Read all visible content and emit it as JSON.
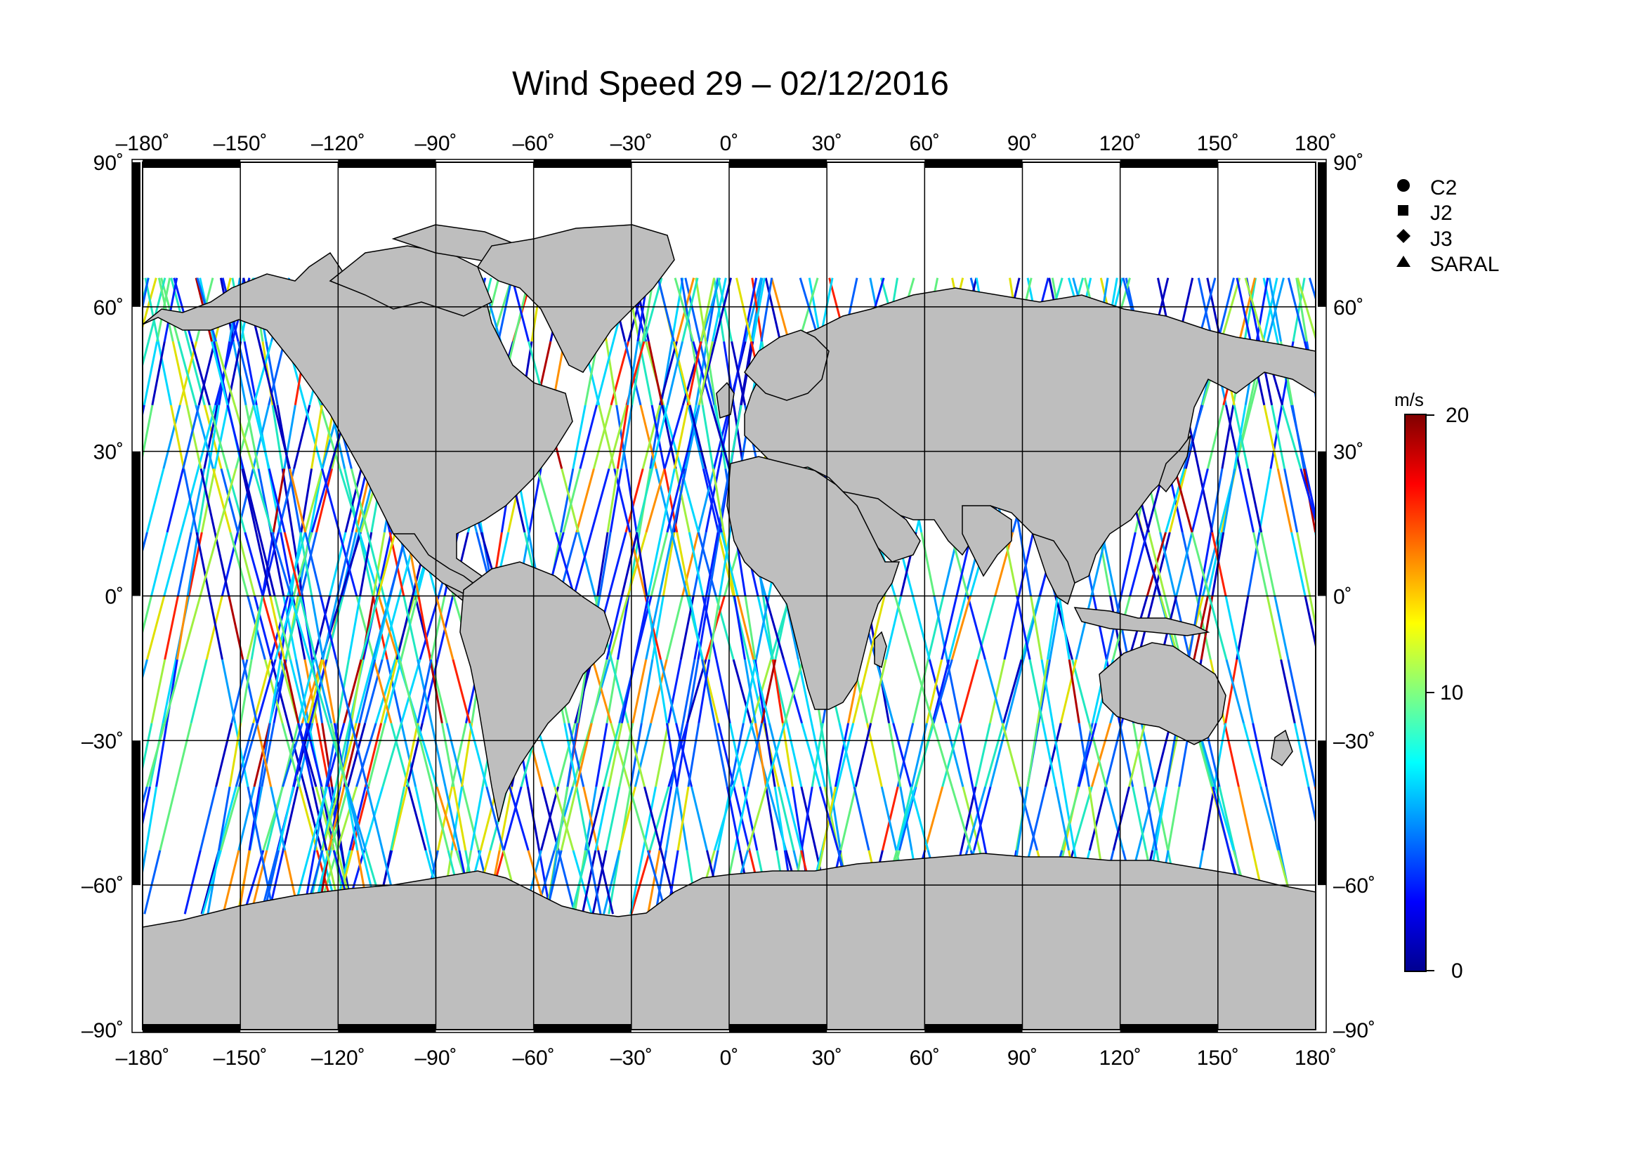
{
  "title": "Wind Speed 29 – 02/12/2016",
  "map": {
    "lon_ticks": [
      "–180˚",
      "–150˚",
      "–120˚",
      "–90˚",
      "–60˚",
      "–30˚",
      "0˚",
      "30˚",
      "60˚",
      "90˚",
      "120˚",
      "150˚",
      "180˚"
    ],
    "lat_ticks": [
      "90˚",
      "60˚",
      "30˚",
      "0˚",
      "–30˚",
      "–60˚",
      "–90˚"
    ],
    "lon_range": [
      -180,
      180
    ],
    "lat_range": [
      -90,
      90
    ],
    "grid": true,
    "land_color": "#bebebe",
    "ocean_color": "#ffffff"
  },
  "legend": {
    "items": [
      {
        "label": "C2",
        "marker": "circle-icon"
      },
      {
        "label": "J2",
        "marker": "square-icon"
      },
      {
        "label": "J3",
        "marker": "diamond-icon"
      },
      {
        "label": "SARAL",
        "marker": "triangle-icon"
      }
    ]
  },
  "colorbar": {
    "unit": "m/s",
    "min_label": "0",
    "mid_label": "10",
    "max_label": "20",
    "range": [
      0,
      20
    ],
    "colors": [
      "#00008f",
      "#0000ff",
      "#0080ff",
      "#00ffff",
      "#80ff80",
      "#ffff00",
      "#ff8000",
      "#ff0000",
      "#800000"
    ]
  }
}
